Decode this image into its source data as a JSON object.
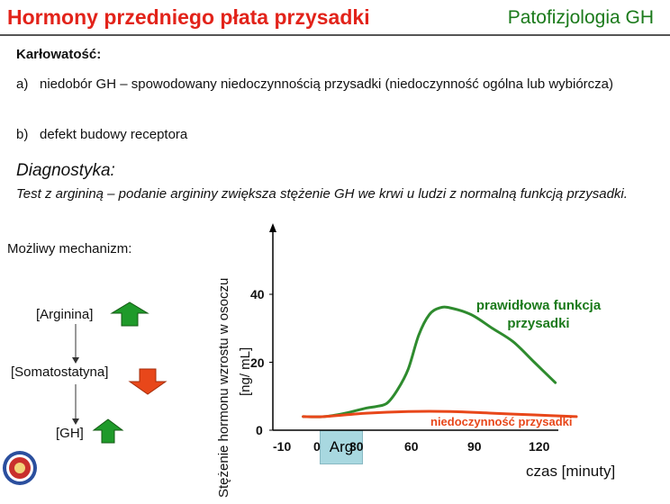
{
  "header": {
    "title": "Hormony przedniego płata przysadki",
    "subject": "Patofizjologia GH"
  },
  "karlowatosc": {
    "heading": "Karłowatość:",
    "items": [
      {
        "marker": "a)",
        "text": "niedobór GH – spowodowany niedoczynnością przysadki (niedoczynność ogólna lub wybiórcza)"
      },
      {
        "marker": "b)",
        "text": "defekt budowy receptora"
      }
    ]
  },
  "diagnostyka": {
    "heading": "Diagnostyka:",
    "text": "Test z argininą – podanie argininy zwiększa stężenie GH we krwi u ludzi z normalną funkcją przysadki."
  },
  "mechanism": {
    "heading": "Możliwy mechanizm:",
    "steps": [
      {
        "label": "[Arginina]",
        "direction": "up",
        "color": "#1f9a2a"
      },
      {
        "label": "[Somatostatyna]",
        "direction": "down",
        "color": "#e8471a"
      },
      {
        "label": "[GH]",
        "direction": "up",
        "color": "#1f9a2a"
      }
    ]
  },
  "chart_data": {
    "type": "line",
    "ylabel": "Stężenie hormonu wzrostu w osoczu",
    "yunit": "[ng/ mL]",
    "xlabel": "czas [minuty]",
    "x_ticks": [
      "-10",
      "0",
      "30",
      "60",
      "90",
      "120"
    ],
    "y_ticks": [
      "0",
      "20",
      "40"
    ],
    "xlim": [
      -10,
      130
    ],
    "ylim": [
      0,
      50
    ],
    "stimulus": {
      "label": "Arg",
      "x_start": 0,
      "x_end": 30
    },
    "series": [
      {
        "name": "prawidłowa funkcja przysadki",
        "color": "#2e8b2e",
        "x": [
          -10,
          0,
          10,
          20,
          25,
          30,
          35,
          40,
          45,
          50,
          55,
          60,
          70,
          80,
          90,
          100,
          110
        ],
        "y": [
          4,
          4,
          5,
          6.5,
          7,
          8,
          12,
          18,
          28,
          34,
          36,
          36,
          34,
          30,
          26,
          20,
          14
        ]
      },
      {
        "name": "niedoczynność przysadki",
        "color": "#e8471a",
        "x": [
          -10,
          0,
          20,
          40,
          60,
          80,
          100,
          120
        ],
        "y": [
          4,
          4,
          5,
          5.5,
          5.5,
          5,
          4.5,
          4
        ]
      }
    ]
  }
}
